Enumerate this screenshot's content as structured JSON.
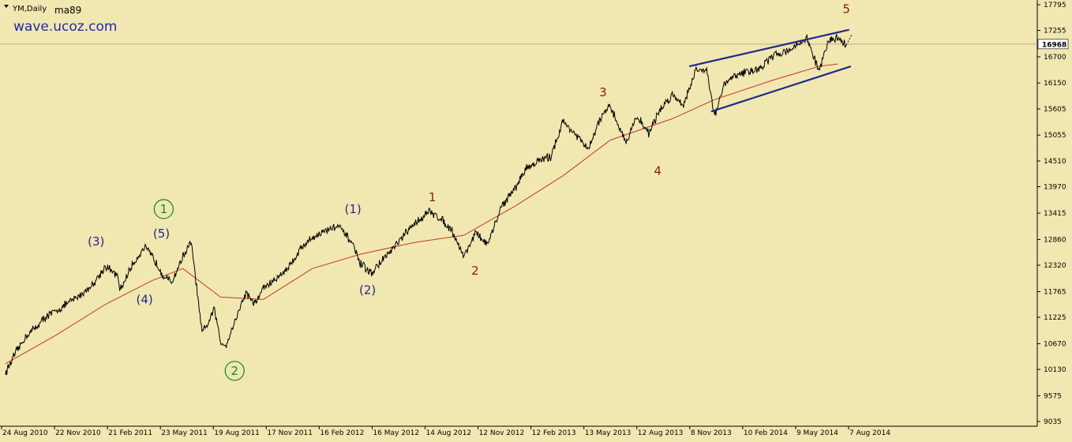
{
  "header": {
    "symbol": "YM,Daily",
    "indicator": "ma89",
    "watermark": "wave.ucoz.com"
  },
  "colors": {
    "background": "#f1e7b1",
    "price": "#000000",
    "moving_average": "#c0392b",
    "channel": "#1f2a8a",
    "wave_label_blue": "#1f2a8a",
    "wave_label_red": "#8b1a1a",
    "wave_label_green": "#1a8a1a"
  },
  "chart_data": {
    "type": "line",
    "grid": false,
    "ylim": [
      9035,
      17795
    ],
    "y_ticks": [
      "17795",
      "17255",
      "16700",
      "16150",
      "15605",
      "15055",
      "14510",
      "13970",
      "13415",
      "12860",
      "12320",
      "11765",
      "11225",
      "10670",
      "10130",
      "9575",
      "9035"
    ],
    "current_price": "16968",
    "x_ticks": [
      "24 Aug 2010",
      "22 Nov 2010",
      "21 Feb 2011",
      "23 May 2011",
      "19 Aug 2011",
      "17 Nov 2011",
      "16 Feb 2012",
      "16 May 2012",
      "14 Aug 2012",
      "12 Nov 2012",
      "12 Feb 2013",
      "13 May 2013",
      "12 Aug 2013",
      "8 Nov 2013",
      "10 Feb 2014",
      "9 May 2014",
      "7 Aug 2014"
    ],
    "series": [
      {
        "kind": "price",
        "x": [
          "2010-08-24",
          "2010-09-10",
          "2010-10-01",
          "2010-10-20",
          "2010-11-05",
          "2010-11-22",
          "2010-12-10",
          "2011-01-05",
          "2011-01-25",
          "2011-02-18",
          "2011-03-10",
          "2011-03-16",
          "2011-04-05",
          "2011-04-28",
          "2011-05-12",
          "2011-06-01",
          "2011-06-15",
          "2011-07-05",
          "2011-07-20",
          "2011-08-08",
          "2011-08-15",
          "2011-08-30",
          "2011-09-10",
          "2011-09-20",
          "2011-10-04",
          "2011-10-25",
          "2011-11-10",
          "2011-11-25",
          "2011-12-15",
          "2012-01-10",
          "2012-02-01",
          "2012-02-20",
          "2012-03-15",
          "2012-04-05",
          "2012-04-30",
          "2012-05-15",
          "2012-06-04",
          "2012-06-25",
          "2012-07-15",
          "2012-08-01",
          "2012-08-20",
          "2012-09-14",
          "2012-10-05",
          "2012-10-25",
          "2012-11-15",
          "2012-12-05",
          "2012-12-28",
          "2013-01-20",
          "2013-02-12",
          "2013-03-05",
          "2013-03-25",
          "2013-04-18",
          "2013-05-10",
          "2013-05-22",
          "2013-06-24",
          "2013-07-15",
          "2013-08-02",
          "2013-08-30",
          "2013-09-18",
          "2013-10-09",
          "2013-10-30",
          "2013-11-20",
          "2013-12-10",
          "2013-12-31",
          "2014-01-20",
          "2014-02-03",
          "2014-02-20",
          "2014-03-10",
          "2014-04-04",
          "2014-04-25",
          "2014-05-15",
          "2014-06-05",
          "2014-06-25",
          "2014-07-17",
          "2014-08-07",
          "2014-08-25",
          "2014-09-10",
          "2014-09-25"
        ],
        "values": [
          10050,
          10450,
          10850,
          11050,
          11250,
          11350,
          11500,
          11700,
          11900,
          12300,
          12100,
          11800,
          12300,
          12700,
          12500,
          12100,
          11950,
          12500,
          12800,
          10900,
          11000,
          11400,
          10700,
          10650,
          11100,
          11750,
          11500,
          11850,
          12000,
          12300,
          12700,
          12900,
          13050,
          13150,
          12800,
          12350,
          12150,
          12450,
          12700,
          12950,
          13200,
          13450,
          13300,
          13050,
          12500,
          13000,
          12750,
          13550,
          13900,
          14350,
          14500,
          14600,
          15350,
          15200,
          14750,
          15400,
          15650,
          14900,
          15450,
          15100,
          15600,
          15900,
          15700,
          16400,
          16450,
          15450,
          16100,
          16300,
          16400,
          16450,
          16700,
          16800,
          16900,
          17100,
          16400,
          17050,
          17100,
          16950
        ]
      },
      {
        "kind": "moving_average",
        "name": "ma89",
        "x": [
          "2010-08-24",
          "2010-11-22",
          "2011-02-18",
          "2011-05-12",
          "2011-07-05",
          "2011-09-10",
          "2011-11-25",
          "2012-02-20",
          "2012-05-15",
          "2012-08-20",
          "2012-11-15",
          "2013-02-12",
          "2013-05-10",
          "2013-08-02",
          "2013-11-20",
          "2014-02-03",
          "2014-05-15",
          "2014-08-07",
          "2014-09-10"
        ],
        "values": [
          10250,
          10850,
          11500,
          12000,
          12250,
          11650,
          11600,
          12250,
          12550,
          12800,
          12950,
          13550,
          14200,
          14950,
          15400,
          15800,
          16200,
          16500,
          16550
        ]
      }
    ],
    "channel_lines": [
      {
        "x": [
          "2013-12-20",
          "2014-09-30"
        ],
        "values": [
          16500,
          17270
        ]
      },
      {
        "x": [
          "2014-01-28",
          "2014-10-03"
        ],
        "values": [
          15550,
          16500
        ]
      }
    ],
    "projection": {
      "x": [
        "2014-09-25",
        "2014-10-05"
      ],
      "values": [
        16950,
        17180
      ]
    },
    "annotations": [
      {
        "text": "(3)",
        "x": "2011-02-01",
        "y": 12820,
        "color": "blue"
      },
      {
        "text": "(4)",
        "x": "2011-04-28",
        "y": 11600,
        "color": "blue"
      },
      {
        "text": "(5)",
        "x": "2011-05-28",
        "y": 12980,
        "color": "blue"
      },
      {
        "text": "1",
        "x": "2011-06-01",
        "y": 13500,
        "color": "green",
        "circled": true
      },
      {
        "text": "2",
        "x": "2011-10-05",
        "y": 10100,
        "color": "green",
        "circled": true
      },
      {
        "text": "(1)",
        "x": "2012-05-02",
        "y": 13500,
        "color": "blue"
      },
      {
        "text": "(2)",
        "x": "2012-05-28",
        "y": 11800,
        "color": "blue"
      },
      {
        "text": "1",
        "x": "2012-09-20",
        "y": 13750,
        "color": "red"
      },
      {
        "text": "2",
        "x": "2012-12-05",
        "y": 12200,
        "color": "red"
      },
      {
        "text": "3",
        "x": "2013-07-20",
        "y": 15950,
        "color": "red"
      },
      {
        "text": "4",
        "x": "2013-10-25",
        "y": 14300,
        "color": "red"
      },
      {
        "text": "5",
        "x": "2014-09-25",
        "y": 17700,
        "color": "red"
      }
    ]
  }
}
